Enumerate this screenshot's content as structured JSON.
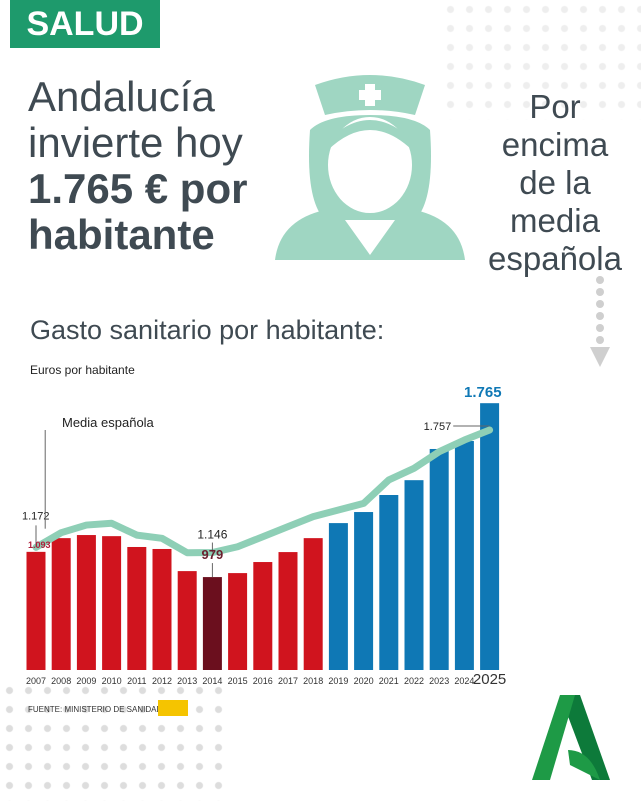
{
  "tag": "SALUD",
  "headline": {
    "line1": "Andalucía",
    "line2": "invierte hoy",
    "line3": "1.765 € por",
    "line4": "habitante"
  },
  "side_text": [
    "Por",
    "encima",
    "de la",
    "media",
    "española"
  ],
  "subtitle": "Gasto sanitario por habitante:",
  "source": "FUENTE: MINISTERIO DE SANIDAD",
  "colors": {
    "brand": "#1e9a6c",
    "red": "#d0141e",
    "dark_red": "#6b0f1e",
    "blue": "#0f78b5",
    "line": "#8ecfb6"
  },
  "chart_data": {
    "type": "bar",
    "ylabel": "Euros por habitante",
    "categories": [
      "2007",
      "2008",
      "2009",
      "2010",
      "2011",
      "2012",
      "2013",
      "2014",
      "2015",
      "2016",
      "2017",
      "2018",
      "2019",
      "2020",
      "2021",
      "2022",
      "2023",
      "2024",
      "2025"
    ],
    "series": [
      {
        "name": "",
        "type": "bar",
        "values": [
          1093,
          1155,
          1169,
          1164,
          1115,
          1106,
          1006,
          979,
          997,
          1047,
          1092,
          1155,
          1223,
          1273,
          1350,
          1417,
          1558,
          1594,
          1765
        ]
      },
      {
        "name": "Media española",
        "type": "line",
        "values": [
          1172,
          1245,
          1283,
          1292,
          1233,
          1217,
          1145,
          1146,
          1175,
          1225,
          1275,
          1325,
          1358,
          1391,
          1508,
          1566,
          1649,
          1707,
          1757
        ]
      }
    ],
    "data_labels": {
      "bar_2007": "1.093",
      "bar_2014": "979",
      "bar_2025": "1.765",
      "line_2007": "1.172",
      "line_2014": "1.146",
      "line_2025": "1.757"
    },
    "legend": "Media española"
  }
}
